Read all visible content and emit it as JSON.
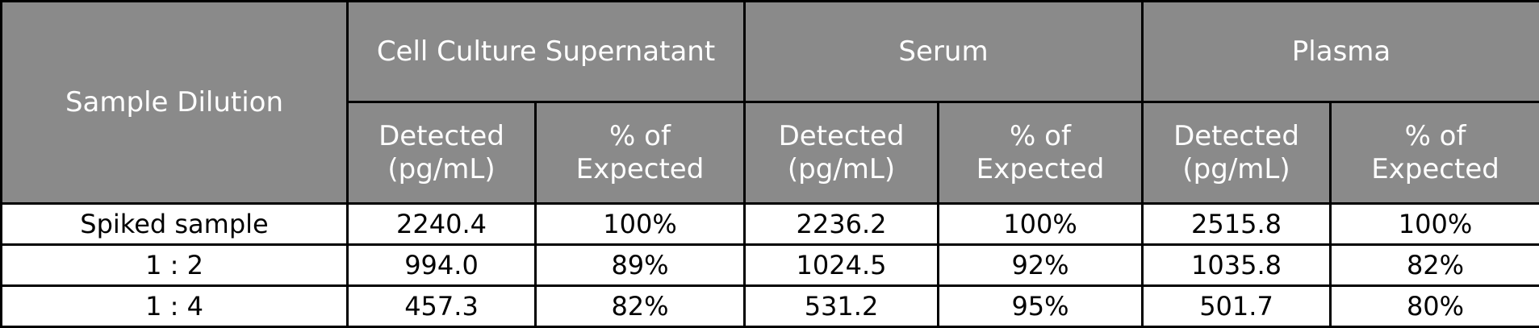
{
  "table": {
    "header": {
      "row_label": "Sample Dilution",
      "groups": [
        "Cell Culture Supernatant",
        "Serum",
        "Plasma"
      ],
      "subheaders": [
        [
          "Detected (pg/mL)",
          "% of Expected"
        ],
        [
          "Detected (pg/mL)",
          "% of Expected"
        ],
        [
          "Detected (pg/mL)",
          "% of Expected"
        ]
      ]
    },
    "rows": [
      [
        "Spiked sample",
        "2240.4",
        "100%",
        "2236.2",
        "100%",
        "2515.8",
        "100%"
      ],
      [
        "1 : 2",
        "994.0",
        "89%",
        "1024.5",
        "92%",
        "1035.8",
        "82%"
      ],
      [
        "1 : 4",
        "457.3",
        "82%",
        "531.2",
        "95%",
        "501.7",
        "80%"
      ]
    ]
  }
}
